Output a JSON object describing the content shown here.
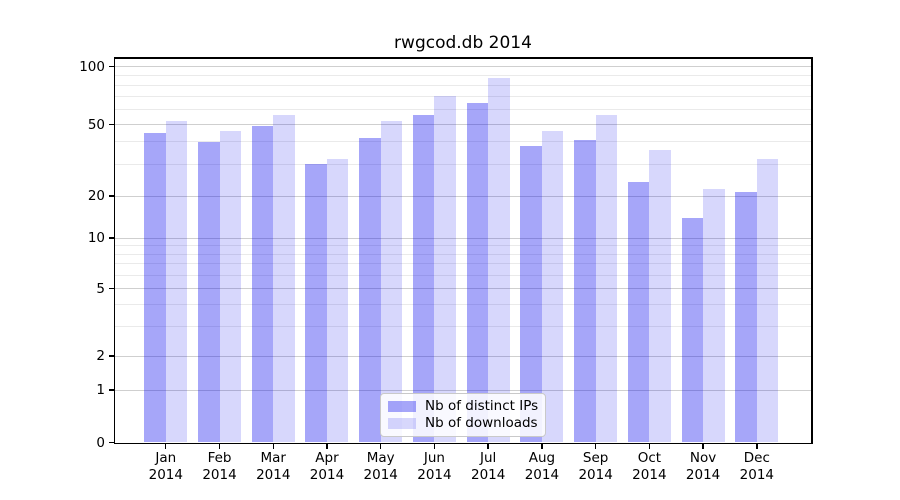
{
  "title": "rwgcod.db 2014",
  "chart_data": {
    "type": "bar",
    "title": "rwgcod.db 2014",
    "categories": [
      "Jan",
      "Feb",
      "Mar",
      "Apr",
      "May",
      "Jun",
      "Jul",
      "Aug",
      "Sep",
      "Oct",
      "Nov",
      "Dec"
    ],
    "x_sublabel": "2014",
    "series": [
      {
        "name": "Nb of distinct IPs",
        "color_hex": "#a7a7f9",
        "values": [
          45,
          40,
          49,
          30,
          42,
          56,
          65,
          38,
          41,
          24,
          14,
          21
        ]
      },
      {
        "name": "Nb of downloads",
        "color_hex": "#d9d9f9",
        "values": [
          52,
          46,
          56,
          32,
          52,
          70,
          87,
          46,
          56,
          36,
          22,
          32
        ]
      }
    ],
    "xlabel": "",
    "ylabel": "",
    "y_scale": "log-like, compressed toward zero (linear segment between 0 and 1)",
    "y_ticks": [
      0,
      1,
      2,
      5,
      10,
      20,
      50,
      100
    ],
    "y_minor_gridlines": [
      3,
      4,
      6,
      7,
      8,
      9,
      30,
      40,
      60,
      70,
      80,
      90
    ],
    "ylim": [
      0,
      110
    ],
    "grid": true,
    "legend_position": "lower center"
  }
}
